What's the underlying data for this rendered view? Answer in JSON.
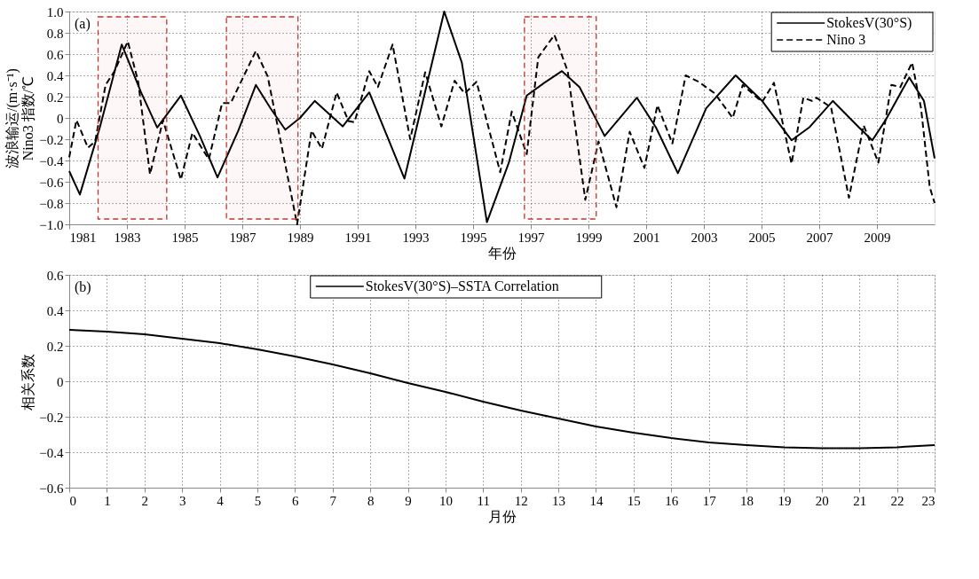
{
  "chart_data": [
    {
      "type": "line",
      "xlabel": "年份",
      "ylabel": "波浪输运/(m·s⁻¹)\nNino3 指数/℃",
      "annotations": [
        "(a)"
      ],
      "xlim": [
        1981,
        2011
      ],
      "xticks": [
        1981,
        1983,
        1985,
        1987,
        1989,
        1991,
        1993,
        1995,
        1997,
        1999,
        2001,
        2003,
        2005,
        2007,
        2009
      ],
      "ylim": [
        -1,
        1
      ],
      "yticks": [
        {
          "value": -1,
          "label": "−1.0"
        },
        -0.8,
        -0.6,
        -0.4,
        -0.2,
        0,
        0.2,
        0.4,
        0.6,
        0.8,
        {
          "value": 1,
          "label": "1.0"
        }
      ],
      "grid": true,
      "legend": "top right",
      "bands": [
        {
          "axis": "x",
          "from": 1982.0,
          "to": 1984.38,
          "color": "#c0392b"
        },
        {
          "axis": "x",
          "from": 1986.45,
          "to": 1988.93,
          "color": "#c0392b"
        },
        {
          "axis": "x",
          "from": 1996.78,
          "to": 1999.27,
          "color": "#c0392b"
        }
      ],
      "series": [
        {
          "name": "StokesV(30°S)",
          "color": "#000000",
          "line_style": "solid",
          "x": [
            1981.0,
            1981.37,
            1982.06,
            1982.82,
            1983.49,
            1984.05,
            1984.87,
            1985.53,
            1986.14,
            1986.86,
            1987.47,
            1987.98,
            1988.49,
            1989.0,
            1989.51,
            1990.48,
            1991.4,
            1992.62,
            1994.0,
            1994.61,
            1995.48,
            1996.24,
            1996.86,
            1997.47,
            1998.08,
            1998.69,
            1999.56,
            2000.68,
            2001.34,
            2002.1,
            2003.08,
            2004.1,
            2005.02,
            2006.04,
            2006.65,
            2007.47,
            2008.38,
            2008.84,
            2009.3,
            2010.12,
            2010.63,
            2011.0
          ],
          "values": [
            -0.5,
            -0.72,
            -0.09,
            0.69,
            0.24,
            -0.09,
            0.21,
            -0.17,
            -0.56,
            -0.12,
            0.31,
            0.09,
            -0.11,
            0.0,
            0.16,
            -0.08,
            0.24,
            -0.57,
            1.0,
            0.52,
            -0.98,
            -0.42,
            0.21,
            0.33,
            0.44,
            0.29,
            -0.17,
            0.19,
            -0.09,
            -0.52,
            0.09,
            0.4,
            0.16,
            -0.21,
            -0.09,
            0.16,
            -0.09,
            -0.21,
            -0.02,
            0.38,
            0.16,
            -0.38
          ]
        },
        {
          "name": "Nino 3",
          "color": "#000000",
          "line_style": "dashed",
          "x": [
            1981.0,
            1981.25,
            1981.65,
            1981.9,
            1982.26,
            1982.57,
            1983.03,
            1983.39,
            1983.8,
            1984.25,
            1984.87,
            1985.27,
            1985.84,
            1986.3,
            1986.6,
            1987.47,
            1987.88,
            1988.33,
            1988.9,
            1989.4,
            1989.76,
            1990.27,
            1990.68,
            1990.89,
            1991.4,
            1991.7,
            1992.21,
            1992.82,
            1993.34,
            1993.9,
            1994.36,
            1994.71,
            1995.12,
            1995.94,
            1996.34,
            1996.86,
            1997.26,
            1997.82,
            1998.28,
            1998.89,
            1999.35,
            1999.97,
            2000.43,
            2000.94,
            2001.39,
            2001.91,
            2002.37,
            2002.82,
            2003.38,
            2004.0,
            2004.35,
            2005.02,
            2005.43,
            2006.04,
            2006.45,
            2006.75,
            2006.9,
            2007.41,
            2008.03,
            2008.54,
            2009.05,
            2009.5,
            2009.81,
            2010.22,
            2010.53,
            2010.83,
            2011.0
          ],
          "values": [
            -0.37,
            -0.02,
            -0.28,
            -0.22,
            0.31,
            0.44,
            0.72,
            0.34,
            -0.53,
            -0.02,
            -0.58,
            -0.14,
            -0.39,
            0.14,
            0.14,
            0.63,
            0.39,
            -0.22,
            -1.0,
            -0.12,
            -0.29,
            0.24,
            -0.03,
            -0.04,
            0.44,
            0.29,
            0.69,
            -0.2,
            0.43,
            -0.08,
            0.35,
            0.23,
            0.34,
            -0.51,
            0.06,
            -0.34,
            0.57,
            0.78,
            0.44,
            -0.77,
            -0.22,
            -0.84,
            -0.13,
            -0.47,
            0.12,
            -0.24,
            0.4,
            0.34,
            0.23,
            0.0,
            0.31,
            0.15,
            0.33,
            -0.43,
            0.19,
            0.16,
            0.19,
            0.1,
            -0.75,
            -0.07,
            -0.42,
            0.31,
            0.29,
            0.52,
            0.09,
            -0.65,
            -0.8
          ]
        }
      ]
    },
    {
      "type": "line",
      "xlabel": "月份",
      "ylabel": "相关系数",
      "annotations": [
        "(b)"
      ],
      "xlim": [
        0,
        23
      ],
      "xticks": [
        0,
        1,
        2,
        3,
        4,
        5,
        6,
        7,
        8,
        9,
        10,
        11,
        12,
        13,
        14,
        15,
        16,
        17,
        18,
        19,
        20,
        21,
        22,
        23
      ],
      "ylim": [
        -0.6,
        0.6
      ],
      "yticks": [
        -0.6,
        -0.4,
        -0.2,
        0,
        0.2,
        0.4,
        0.6
      ],
      "grid": true,
      "legend": "top",
      "series": [
        {
          "name": "StokesV(30°S)–SSTA Correlation",
          "color": "#000000",
          "line_style": "solid",
          "x": [
            0,
            1,
            2,
            3,
            4,
            5,
            6,
            7,
            8,
            9,
            10,
            11,
            12,
            13,
            14,
            15,
            16,
            17,
            18,
            19,
            20,
            21,
            22,
            23
          ],
          "values": [
            0.29,
            0.28,
            0.265,
            0.24,
            0.215,
            0.18,
            0.14,
            0.095,
            0.045,
            -0.01,
            -0.06,
            -0.115,
            -0.165,
            -0.21,
            -0.255,
            -0.29,
            -0.32,
            -0.345,
            -0.36,
            -0.372,
            -0.378,
            -0.378,
            -0.372,
            -0.36
          ]
        }
      ]
    }
  ]
}
